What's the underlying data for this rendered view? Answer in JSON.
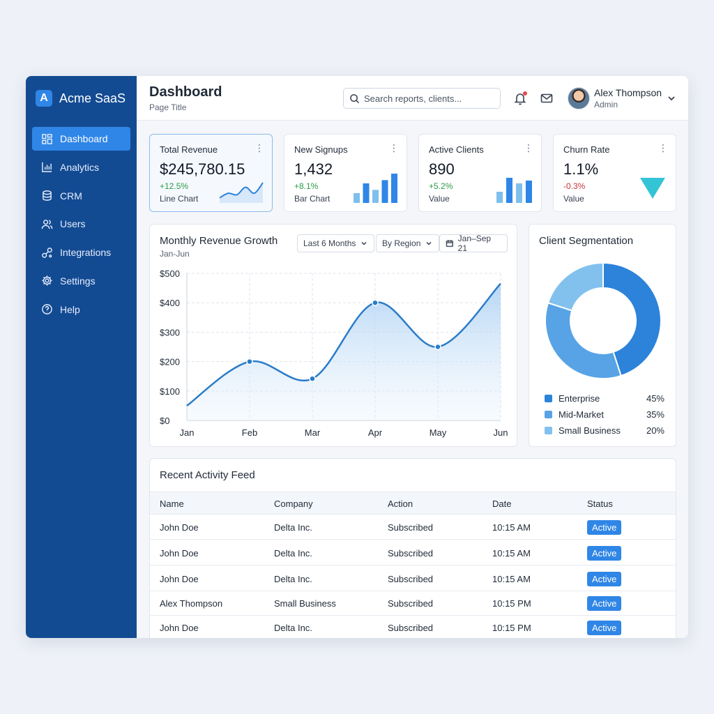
{
  "brand": {
    "name": "Acme SaaS",
    "logo_letter": "A"
  },
  "sidebar": {
    "items": [
      {
        "label": "Dashboard",
        "icon": "grid-icon",
        "active": true
      },
      {
        "label": "Analytics",
        "icon": "bar-chart-icon",
        "active": false
      },
      {
        "label": "CRM",
        "icon": "database-icon",
        "active": false
      },
      {
        "label": "Users",
        "icon": "users-icon",
        "active": false
      },
      {
        "label": "Integrations",
        "icon": "plug-icon",
        "active": false
      },
      {
        "label": "Settings",
        "icon": "gear-icon",
        "active": false
      },
      {
        "label": "Help",
        "icon": "help-icon",
        "active": false
      }
    ]
  },
  "header": {
    "title": "Dashboard",
    "subtitle": "Page Title",
    "search_placeholder": "Search reports, clients...",
    "user": {
      "name": "Alex Thompson",
      "role": "Admin"
    }
  },
  "kpis": [
    {
      "title": "Total Revenue",
      "value": "$245,780.15",
      "change": "+12.5%",
      "trend": "up",
      "footer": "Line Chart"
    },
    {
      "title": "New Signups",
      "value": "1,432",
      "change": "+8.1%",
      "trend": "up",
      "footer": "Bar Chart"
    },
    {
      "title": "Active Clients",
      "value": "890",
      "change": "+5.2%",
      "trend": "up",
      "footer": "Value"
    },
    {
      "title": "Churn Rate",
      "value": "1.1%",
      "change": "-0.3%",
      "trend": "down",
      "footer": "Value"
    }
  ],
  "revenue_card": {
    "title": "Monthly Revenue Growth",
    "subtitle": "Jan-Jun",
    "range_select": "Last 6 Months",
    "group_select": "By Region",
    "date_range": "Jan–Sep 21"
  },
  "segmentation": {
    "title": "Client Segmentation",
    "items": [
      {
        "label": "Enterprise",
        "pct": "45%"
      },
      {
        "label": "Mid-Market",
        "pct": "35%"
      },
      {
        "label": "Small Business",
        "pct": "20%"
      }
    ]
  },
  "activity": {
    "title": "Recent Activity Feed",
    "columns": [
      "Name",
      "Company",
      "Action",
      "Date",
      "Status"
    ],
    "rows": [
      [
        "John Doe",
        "Delta Inc.",
        "Subscribed",
        "10:15 AM",
        "Active"
      ],
      [
        "John Doe",
        "Delta Inc.",
        "Subscribed",
        "10:15 AM",
        "Active"
      ],
      [
        "John Doe",
        "Delta Inc.",
        "Subscribed",
        "10:15 AM",
        "Active"
      ],
      [
        "Alex Thompson",
        "Small Business",
        "Subscribed",
        "10:15 PM",
        "Active"
      ],
      [
        "John Doe",
        "Delta Inc.",
        "Subscribed",
        "10:15 PM",
        "Active"
      ]
    ]
  },
  "colors": {
    "sidebar": "#134b93",
    "accent": "#2f86e6",
    "positive": "#2b9a48",
    "negative": "#c8363a"
  },
  "chart_data": [
    {
      "type": "line",
      "title": "Monthly Revenue Growth",
      "categories": [
        "Jan",
        "Feb",
        "Mar",
        "Apr",
        "May",
        "Jun"
      ],
      "values": [
        50,
        200,
        142,
        400,
        250,
        465
      ],
      "y_ticks": [
        "$0",
        "$100",
        "$200",
        "$300",
        "$400",
        "$500"
      ],
      "ylim": [
        0,
        500
      ],
      "grid": true
    },
    {
      "type": "pie",
      "title": "Client Segmentation",
      "categories": [
        "Enterprise",
        "Mid-Market",
        "Small Business"
      ],
      "values": [
        45,
        35,
        20
      ],
      "colors": [
        "#2c83d9",
        "#57a3e6",
        "#82c1ee"
      ]
    },
    {
      "type": "bar",
      "categories": [
        "1",
        "2",
        "3",
        "4",
        "5"
      ],
      "values": [
        3,
        6,
        4,
        7,
        9
      ],
      "colors": [
        "#7fbfee",
        "#2f86e6",
        "#7fbfee",
        "#2f86e6",
        "#2f86e6"
      ]
    },
    {
      "type": "bar",
      "categories": [
        "1",
        "2",
        "3",
        "4"
      ],
      "values": [
        4,
        9,
        7,
        8
      ],
      "colors": [
        "#7fbfee",
        "#2f86e6",
        "#7fbfee",
        "#2f86e6"
      ]
    },
    {
      "type": "line",
      "values": [
        2,
        5,
        4,
        9,
        5,
        12
      ]
    }
  ]
}
